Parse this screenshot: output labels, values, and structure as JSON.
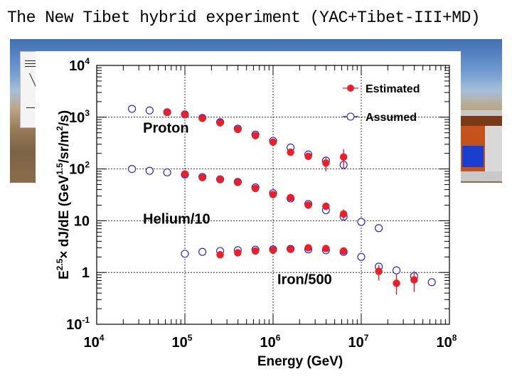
{
  "slide": {
    "title": "The New Tibet hybrid experiment (YAC+Tibet-III+MD)"
  },
  "colors": {
    "estimated": "#e8202a",
    "assumed": "#1c1cc8",
    "axis": "#000000",
    "grid": "#000000"
  },
  "chart_data": {
    "type": "scatter",
    "xscale": "log",
    "yscale": "log",
    "xlim": [
      10000,
      100000000
    ],
    "ylim": [
      0.1,
      10000
    ],
    "xlabel": "Energy (GeV)",
    "ylabel_parts": [
      "E",
      "2.5",
      "×",
      " dJ/dE (GeV",
      "1.5",
      "/sr/m",
      "2",
      "/s)"
    ],
    "xticks": [
      {
        "value": 10000,
        "base": "10",
        "exp": "4"
      },
      {
        "value": 100000,
        "base": "10",
        "exp": "5"
      },
      {
        "value": 1000000,
        "base": "10",
        "exp": "6"
      },
      {
        "value": 10000000,
        "base": "10",
        "exp": "7"
      },
      {
        "value": 100000000,
        "base": "10",
        "exp": "8"
      }
    ],
    "yticks": [
      {
        "value": 0.1,
        "base": "10",
        "exp": "-1"
      },
      {
        "value": 1,
        "base": "1",
        "exp": ""
      },
      {
        "value": 10,
        "base": "10",
        "exp": ""
      },
      {
        "value": 100,
        "base": "10",
        "exp": "2"
      },
      {
        "value": 1000,
        "base": "10",
        "exp": "3"
      },
      {
        "value": 10000,
        "base": "10",
        "exp": "4"
      }
    ],
    "grid": true,
    "legend_position": "top-right",
    "annotations": [
      {
        "text": "Proton",
        "x": 30000,
        "y": 630
      },
      {
        "text": "Helium/10",
        "x": 30000,
        "y": 11
      },
      {
        "text": "Iron/500",
        "x": 1000000,
        "y": 0.75
      }
    ],
    "series": [
      {
        "name": "Estimated",
        "marker": "filled-circle",
        "groups": [
          {
            "component": "Proton",
            "x": [
              63000,
              100000,
              158000,
              251000,
              398000,
              631000,
              1000000,
              1580000,
              2510000,
              3980000,
              6310000
            ],
            "y": [
              1250,
              1120,
              950,
              780,
              580,
              440,
              330,
              210,
              175,
              130,
              170
            ],
            "err_low": [
              0,
              0,
              0,
              0,
              0,
              0,
              0,
              0,
              20,
              40,
              70
            ],
            "err_high": [
              0,
              0,
              0,
              0,
              0,
              0,
              0,
              0,
              20,
              40,
              70
            ]
          },
          {
            "component": "Helium/10",
            "x": [
              100000,
              158000,
              251000,
              398000,
              631000,
              1000000,
              1580000,
              2510000,
              3980000,
              6310000
            ],
            "y": [
              80,
              68,
              63,
              55,
              42,
              32,
              28,
              20,
              19,
              13.5
            ],
            "err_low": [
              0,
              0,
              0,
              0,
              0,
              0,
              0,
              0,
              0,
              3
            ],
            "err_high": [
              0,
              0,
              0,
              0,
              0,
              0,
              0,
              0,
              0,
              3
            ]
          },
          {
            "component": "Iron/500",
            "x": [
              251000,
              398000,
              631000,
              1000000,
              1580000,
              2510000,
              3980000,
              6310000,
              15800000,
              25100000,
              39800000
            ],
            "y": [
              2.2,
              2.4,
              2.6,
              2.7,
              2.8,
              3.0,
              2.9,
              2.6,
              1.05,
              0.62,
              0.72
            ],
            "err_low": [
              0,
              0,
              0,
              0,
              0,
              0,
              0,
              0,
              0.35,
              0.25,
              0.3
            ],
            "err_high": [
              0,
              0,
              0,
              0,
              0,
              0,
              0,
              0,
              0.35,
              0.3,
              0.35
            ]
          }
        ]
      },
      {
        "name": "Assumed",
        "marker": "open-circle",
        "groups": [
          {
            "component": "Proton",
            "x": [
              25100,
              39800,
              63000,
              100000,
              158000,
              251000,
              398000,
              631000,
              1000000,
              1580000,
              2510000,
              3980000,
              6310000
            ],
            "y": [
              1450,
              1350,
              1250,
              1130,
              970,
              800,
              600,
              460,
              350,
              260,
              190,
              145,
              120
            ]
          },
          {
            "component": "Helium/10",
            "x": [
              25100,
              39800,
              63000,
              100000,
              158000,
              251000,
              398000,
              631000,
              1000000,
              1580000,
              2510000,
              3980000,
              6310000,
              10000000,
              15800000
            ],
            "y": [
              100,
              92,
              86,
              78,
              70,
              63,
              56,
              44,
              34,
              27,
              21,
              16,
              12,
              9.5,
              7.2
            ]
          },
          {
            "component": "Iron/500",
            "x": [
              100000,
              158000,
              251000,
              398000,
              631000,
              1000000,
              1580000,
              2510000,
              3980000,
              6310000,
              10000000,
              15800000,
              25100000,
              39800000,
              63100000
            ],
            "y": [
              2.3,
              2.5,
              2.6,
              2.7,
              2.75,
              2.8,
              2.85,
              2.8,
              2.7,
              2.5,
              2.0,
              1.3,
              1.1,
              0.85,
              0.65
            ]
          }
        ]
      }
    ]
  }
}
